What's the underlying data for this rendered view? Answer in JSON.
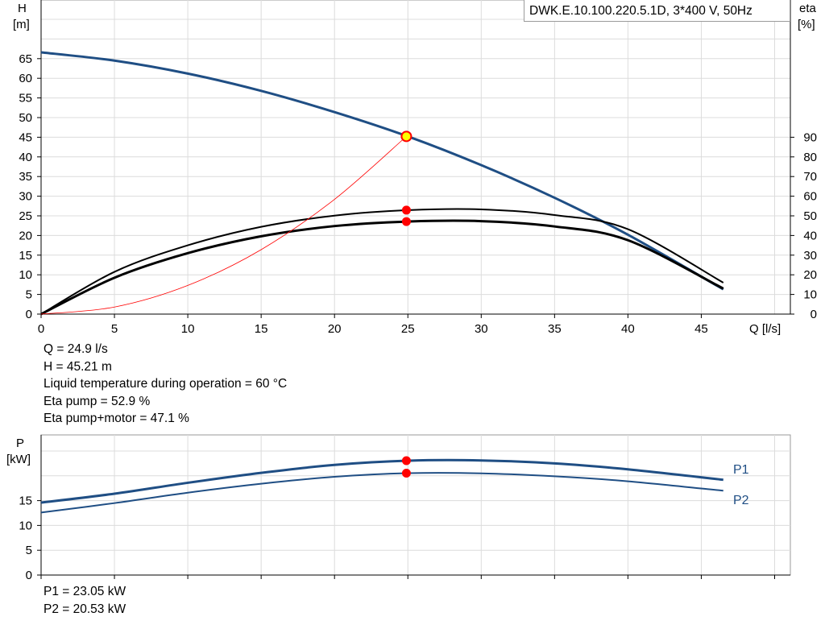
{
  "title": "DWK.E.10.100.220.5.1D, 3*400 V, 50Hz",
  "colors": {
    "pump_curve": "#1f4e84",
    "power_curve": "#1f4e84",
    "efficiency_curve": "#000000",
    "system_curve": "#ff0000",
    "grid": "#dcdcdc",
    "operating_point": "#ff0000",
    "operating_point_fill_head": "#ffff00"
  },
  "info_top": {
    "line1": "Q = 24.9 l/s",
    "line2": "H = 45.21 m",
    "line3": "Liquid temperature during operation = 60 °C",
    "line4": "Eta pump = 52.9 %",
    "line5": "Eta pump+motor = 47.1 %"
  },
  "info_bottom": {
    "line1": "P1 = 23.05 kW",
    "line2": "P2 = 20.53 kW"
  },
  "chart_data": [
    {
      "type": "line",
      "title": "DWK.E.10.100.220.5.1D, 3*400 V, 50Hz",
      "xlabel": "Q [l/s]",
      "ylabel": "H [m]",
      "ylabel_line1": "H",
      "ylabel_line2": "[m]",
      "ylabel_right": "eta [%]",
      "ylabel_right_line1": "eta",
      "ylabel_right_line2": "[%]",
      "xlim": [
        0,
        50
      ],
      "ylim": [
        0,
        75
      ],
      "ylim_right": [
        0,
        150
      ],
      "grid": true,
      "x_ticks": [
        "0",
        "5",
        "10",
        "15",
        "20",
        "25",
        "30",
        "35",
        "40",
        "45"
      ],
      "y_ticks": [
        "0",
        "5",
        "10",
        "15",
        "20",
        "25",
        "30",
        "35",
        "40",
        "45",
        "50",
        "55",
        "60",
        "65"
      ],
      "y_ticks_right": [
        "0",
        "10",
        "20",
        "30",
        "40",
        "50",
        "60",
        "70",
        "80",
        "90"
      ],
      "series": [
        {
          "key": "H",
          "axis": "left",
          "x": [
            0,
            5,
            10,
            15,
            20,
            25,
            30,
            35,
            40,
            46.5
          ],
          "y": [
            66.6,
            64.5,
            61.2,
            56.8,
            51.4,
            45.21,
            37.9,
            29.6,
            20.2,
            6.3
          ]
        },
        {
          "key": "eta_pump",
          "axis": "right",
          "x": [
            0,
            5,
            10,
            15,
            20,
            25,
            30,
            35,
            40,
            46.5
          ],
          "y": [
            0,
            21.5,
            35.0,
            44.4,
            50.1,
            52.9,
            53.3,
            50.4,
            43.2,
            16.0
          ]
        },
        {
          "key": "eta_pump_motor",
          "axis": "right",
          "x": [
            0,
            5,
            10,
            15,
            20,
            25,
            30,
            35,
            40,
            46.5
          ],
          "y": [
            0,
            18.5,
            31.0,
            39.6,
            44.8,
            47.1,
            47.3,
            44.6,
            37.6,
            13.0
          ]
        },
        {
          "key": "system",
          "axis": "left",
          "x": [
            0,
            5,
            10,
            15,
            20,
            24.9
          ],
          "y": [
            0,
            1.8,
            7.3,
            16.4,
            29.2,
            45.21
          ]
        }
      ],
      "operating_point": {
        "x": 24.9,
        "h": 45.21,
        "eta_pump": 52.9,
        "eta_pump_motor": 47.1
      }
    },
    {
      "type": "line",
      "xlabel": "",
      "ylabel": "P [kW]",
      "ylabel_line1": "P",
      "ylabel_line2": "[kW]",
      "xlim": [
        0,
        50
      ],
      "ylim": [
        0,
        28
      ],
      "grid": true,
      "y_ticks": [
        "0",
        "5",
        "10",
        "15"
      ],
      "series": [
        {
          "name": "P1",
          "x": [
            0,
            5,
            10,
            15,
            20,
            25,
            30,
            35,
            40,
            46.5
          ],
          "values": [
            14.6,
            16.4,
            18.6,
            20.6,
            22.2,
            23.05,
            23.1,
            22.5,
            21.3,
            19.2
          ]
        },
        {
          "name": "P2",
          "x": [
            0,
            5,
            10,
            15,
            20,
            25,
            30,
            35,
            40,
            46.5
          ],
          "values": [
            12.6,
            14.5,
            16.6,
            18.4,
            19.8,
            20.53,
            20.5,
            19.9,
            18.9,
            17.0
          ]
        }
      ],
      "operating_point": {
        "x": 24.9,
        "p1": 23.05,
        "p2": 20.53
      }
    }
  ]
}
